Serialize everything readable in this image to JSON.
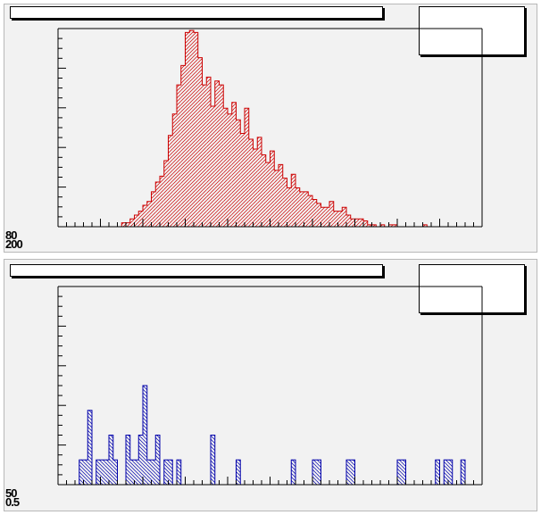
{
  "pads": [
    {
      "axis_labels": [
        "80",
        "200"
      ],
      "hist_color": "#cc0000",
      "hatch": "diagonal-down"
    },
    {
      "axis_labels": [
        "50",
        "0.5"
      ],
      "hist_color": "#0000aa",
      "hatch": "diagonal-up"
    }
  ],
  "chart_data": [
    {
      "type": "bar",
      "title": "",
      "xlabel": "",
      "ylabel": "",
      "n_bins": 100,
      "ylim": [
        0,
        102
      ],
      "values": [
        0,
        0,
        0,
        0,
        0,
        0,
        0,
        0,
        0,
        0,
        0,
        0,
        0,
        0,
        0,
        2,
        2,
        4,
        6,
        8,
        11,
        13,
        18,
        23,
        26,
        34,
        47,
        58,
        73,
        83,
        100,
        101,
        100,
        87,
        73,
        77,
        62,
        75,
        73,
        61,
        58,
        64,
        55,
        48,
        61,
        45,
        40,
        46,
        37,
        33,
        39,
        29,
        32,
        25,
        20,
        27,
        20,
        18,
        18,
        16,
        14,
        12,
        10,
        10,
        13,
        8,
        8,
        10,
        6,
        4,
        4,
        4,
        3,
        1,
        1,
        0,
        1,
        0,
        1,
        1,
        0,
        0,
        0,
        0,
        0,
        0,
        1,
        0,
        0,
        0,
        0,
        0,
        0,
        0,
        0,
        0,
        0,
        0,
        0,
        0
      ]
    },
    {
      "type": "bar",
      "title": "",
      "xlabel": "",
      "ylabel": "",
      "n_bins": 100,
      "ylim": [
        0,
        8
      ],
      "values": [
        0,
        0,
        0,
        0,
        0,
        1,
        1,
        3,
        0,
        1,
        1,
        1,
        2,
        1,
        0,
        0,
        2,
        1,
        1,
        2,
        4,
        1,
        1,
        2,
        0,
        1,
        1,
        0,
        1,
        0,
        0,
        0,
        0,
        0,
        0,
        0,
        2,
        0,
        0,
        0,
        0,
        0,
        1,
        0,
        0,
        0,
        0,
        0,
        0,
        0,
        0,
        0,
        0,
        0,
        0,
        1,
        0,
        0,
        0,
        0,
        1,
        1,
        0,
        0,
        0,
        0,
        0,
        0,
        1,
        1,
        0,
        0,
        0,
        0,
        0,
        0,
        0,
        0,
        0,
        0,
        1,
        1,
        0,
        0,
        0,
        0,
        0,
        0,
        0,
        1,
        0,
        1,
        1,
        0,
        0,
        1,
        0,
        0,
        0,
        0
      ]
    }
  ]
}
